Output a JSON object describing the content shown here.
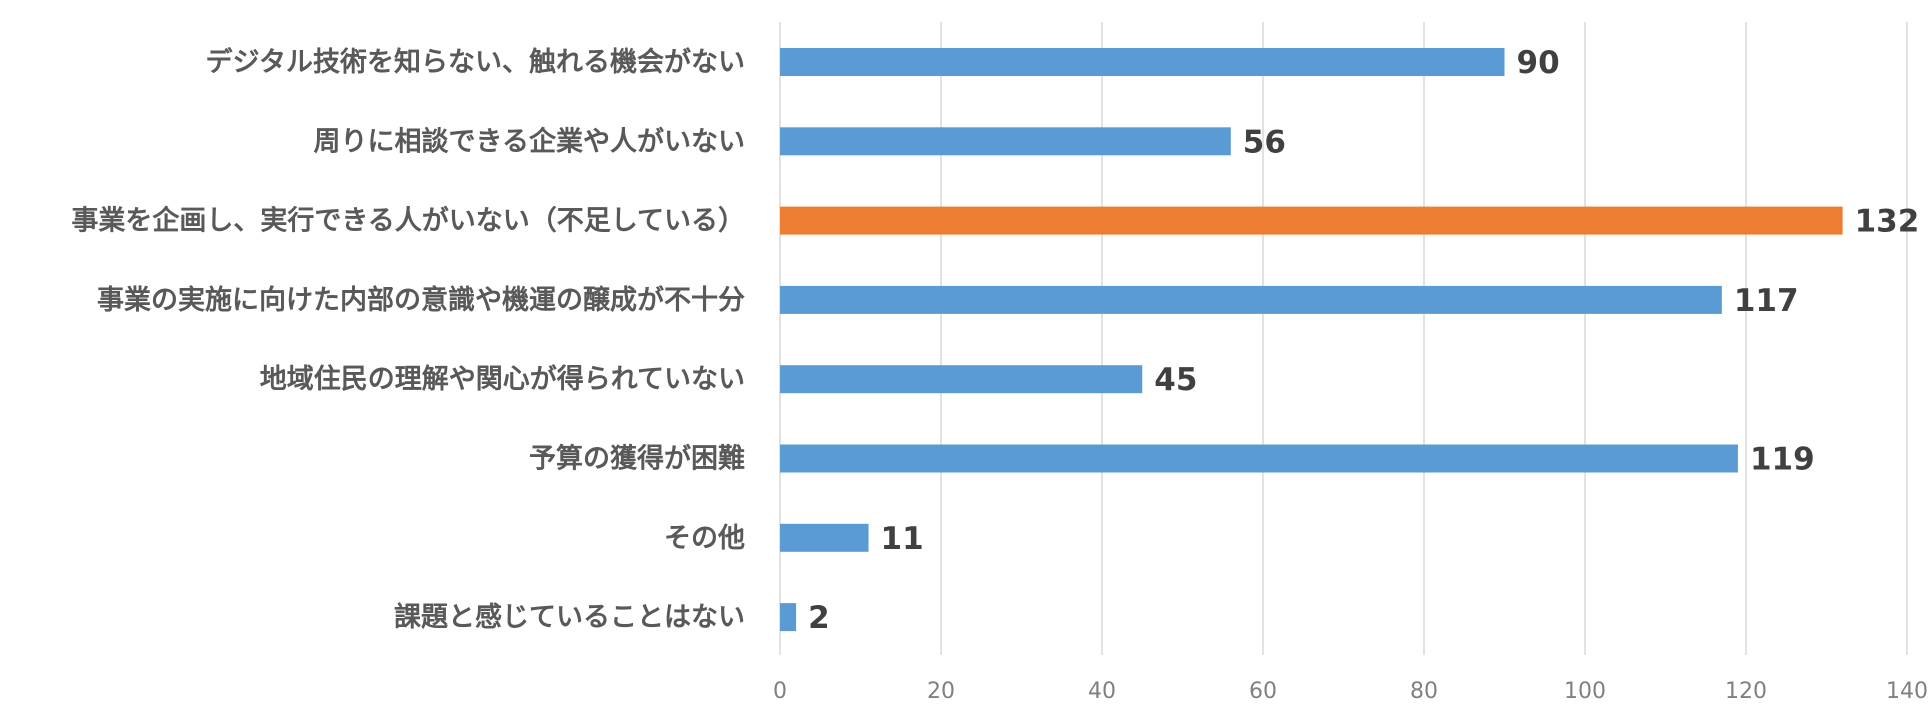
{
  "chart_data": {
    "type": "bar",
    "orientation": "horizontal",
    "categories": [
      "デジタル技術を知らない、触れる機会がない",
      "周りに相談できる企業や人がいない",
      "事業を企画し、実行できる人がいない（不足している）",
      "事業の実施に向けた内部の意識や機運の醸成が不十分",
      "地域住民の理解や関心が得られていない",
      "予算の獲得が困難",
      "その他",
      "課題と感じていることはない"
    ],
    "values": [
      90,
      56,
      132,
      117,
      45,
      119,
      11,
      2
    ],
    "highlight_index": 2,
    "title": "",
    "xlabel": "",
    "ylabel": "",
    "xlim": [
      0,
      140
    ],
    "x_ticks": [
      0,
      20,
      40,
      60,
      80,
      100,
      120,
      140
    ],
    "grid": true,
    "legend": "none",
    "colors": {
      "bar": "#5b9bd5",
      "highlight": "#ed7d31",
      "grid": "#d9d9d9",
      "category_text": "#595959",
      "value_text": "#404040",
      "tick_text": "#808080"
    }
  }
}
